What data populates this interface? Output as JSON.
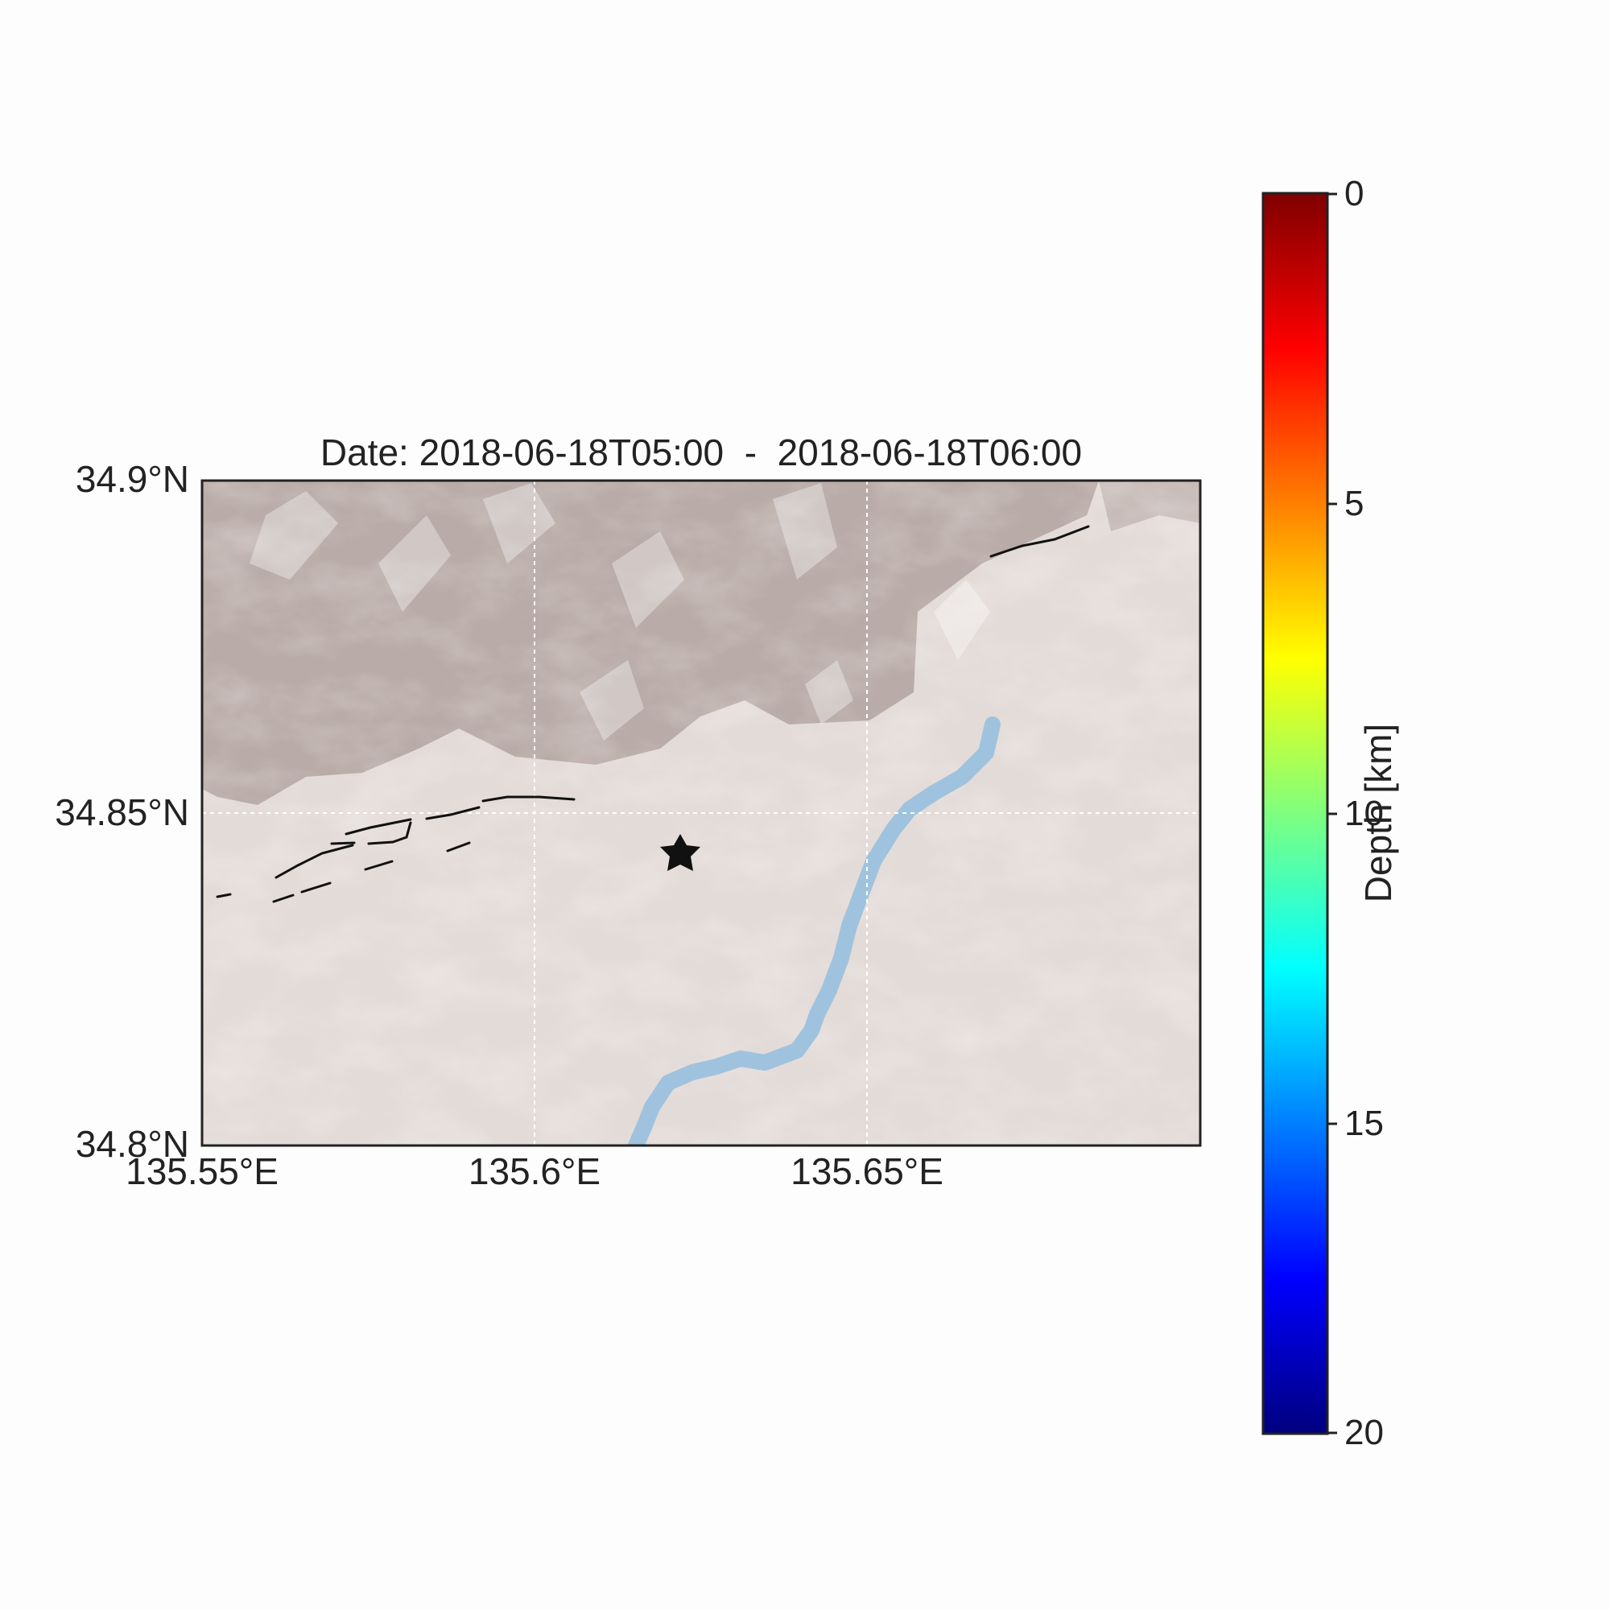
{
  "title": "Date: 2018-06-18T05:00  -  2018-06-18T06:00",
  "map": {
    "lat_ticks": [
      "34.9°N",
      "34.85°N",
      "34.8°N"
    ],
    "lon_ticks": [
      "135.55°E",
      "135.6°E",
      "135.65°E"
    ],
    "extent": {
      "lon_min": 135.55,
      "lon_max": 135.7,
      "lat_min": 34.8,
      "lat_max": 34.9
    },
    "gridlines": "dotted white",
    "epicenter": {
      "symbol": "star",
      "lon": 135.622,
      "lat": 34.844,
      "color": "#111111"
    },
    "faults_color": "#111111",
    "river_color": "#9fc3de",
    "terrain_colors": {
      "lowland": "#e3dbd8",
      "highland": "#b9aba7"
    }
  },
  "colorbar": {
    "label": "Depth [km]",
    "ticks": [
      "0",
      "5",
      "10",
      "15",
      "20"
    ],
    "range": [
      0,
      20
    ],
    "colormap": "jet",
    "colors": [
      "#7f0000",
      "#ff0000",
      "#ff7f00",
      "#ffff00",
      "#7fff7f",
      "#00ffff",
      "#007fff",
      "#0000ff",
      "#00007f"
    ]
  }
}
